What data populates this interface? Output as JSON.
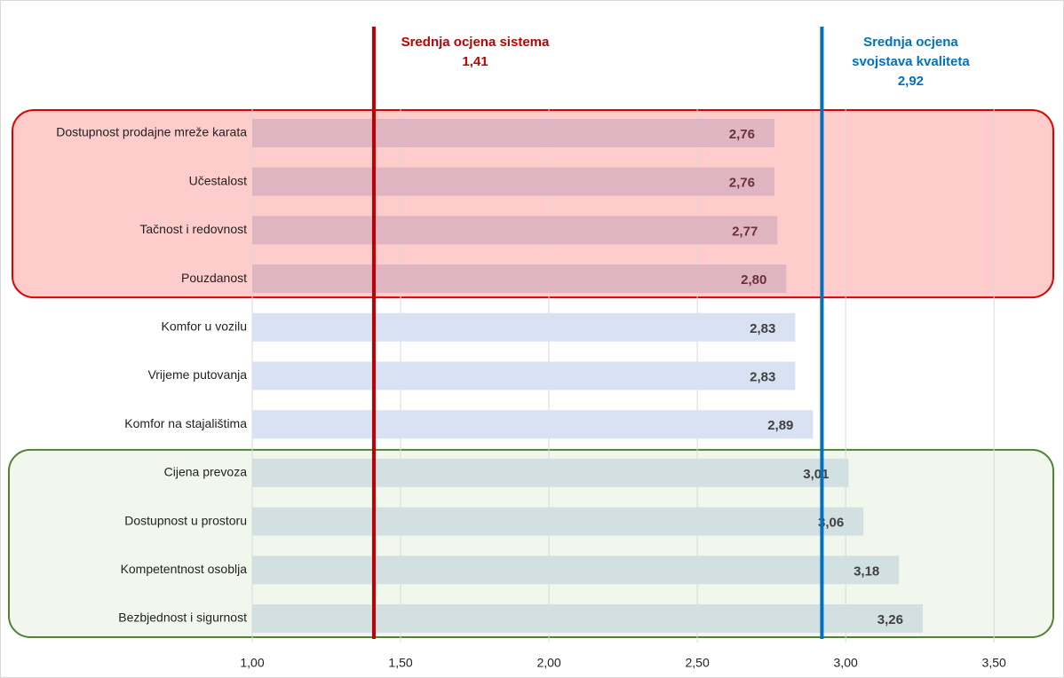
{
  "chart_data": {
    "type": "bar",
    "orientation": "horizontal",
    "categories": [
      "Dostupnost prodajne mreže karata",
      "Učestalost",
      "Tačnost i redovnost",
      "Pouzdanost",
      "Komfor u vozilu",
      "Vrijeme putovanja",
      "Komfor na stajalištima",
      "Cijena prevoza",
      "Dostupnost u prostoru",
      "Kompetentnost osoblja",
      "Bezbjednost i sigurnost"
    ],
    "values": [
      2.76,
      2.76,
      2.77,
      2.8,
      2.83,
      2.83,
      2.89,
      3.01,
      3.06,
      3.18,
      3.26
    ],
    "value_labels": [
      "2,76",
      "2,76",
      "2,77",
      "2,80",
      "2,83",
      "2,83",
      "2,89",
      "3,01",
      "3,06",
      "3,18",
      "3,26"
    ],
    "colors": [
      "#dfb5c2",
      "#dfb5c2",
      "#dfb5c2",
      "#dfb5c2",
      "#d9e2f3",
      "#d9e2f3",
      "#d9e2f3",
      "#d3e0e2",
      "#d3e0e2",
      "#d3e0e2",
      "#d3e0e2"
    ],
    "xlim": [
      1,
      3.7
    ],
    "xticks": [
      {
        "value": 1,
        "label": "1,00"
      },
      {
        "value": 1.5,
        "label": "1,50"
      },
      {
        "value": 2,
        "label": "2,00"
      },
      {
        "value": 2.5,
        "label": "2,50"
      },
      {
        "value": 3,
        "label": "3,00"
      },
      {
        "value": 3.5,
        "label": "3,50"
      }
    ],
    "grid": true,
    "reference_lines": [
      {
        "label": [
          "Srednja ocjena sistema"
        ],
        "value": 1.41,
        "value_label": "1,41",
        "color": "#c00000"
      },
      {
        "label": [
          "Srednja ocjena",
          "svojstava kvaliteta"
        ],
        "value": 2.92,
        "value_label": "2,92",
        "color": "#0070c0"
      }
    ],
    "groups": [
      {
        "rows": [
          0,
          3
        ],
        "fill": "#ffcccc",
        "stroke": "#e00000"
      },
      {
        "rows": [
          7,
          10
        ],
        "fill": "#f2f7ed",
        "stroke": "#548235"
      }
    ]
  }
}
